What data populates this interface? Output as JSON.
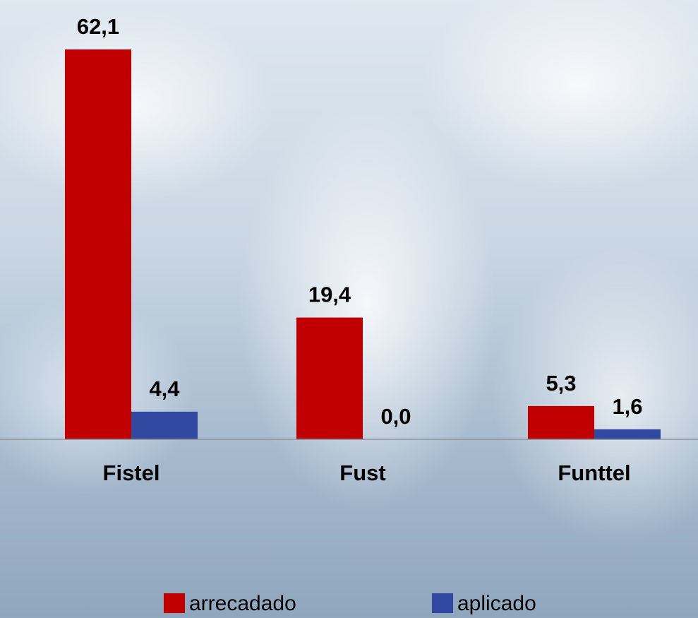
{
  "chart_data": {
    "type": "bar",
    "categories": [
      "Fistel",
      "Fust",
      "Funttel"
    ],
    "series": [
      {
        "name": "arrecadado",
        "color": "#c00000",
        "values": [
          62.1,
          19.4,
          5.3
        ],
        "value_labels": [
          "62,1",
          "19,4",
          "5,3"
        ]
      },
      {
        "name": "aplicado",
        "color": "#3048a0",
        "values": [
          4.4,
          0.0,
          1.6
        ],
        "value_labels": [
          "4,4",
          "0,0",
          "1,6"
        ]
      }
    ]
  }
}
